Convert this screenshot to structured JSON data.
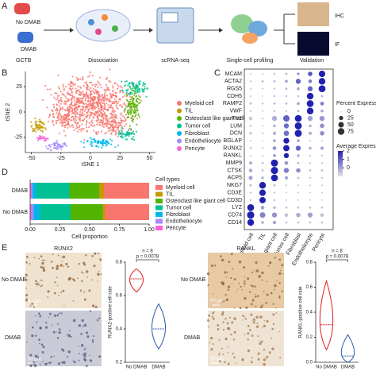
{
  "panel_labels": [
    "A",
    "B",
    "C",
    "D",
    "E"
  ],
  "workflow": {
    "groups": [
      "No DMAB",
      "DMAB"
    ],
    "sample": "GCTB",
    "steps": [
      "Dissociation",
      "scRNA-seq",
      "Single-cell profiling",
      "Validation"
    ],
    "validation_methods": [
      "IHC",
      "IF"
    ]
  },
  "ihc": {
    "rows": [
      "No DMAB",
      "DMAB"
    ],
    "scale_bar": "50 μm"
  },
  "chart_data": [
    {
      "type": "scatter",
      "xlabel": "tSNE 1",
      "ylabel": "tSNE 2",
      "xlim": [
        -55,
        55
      ],
      "xticks": [
        -50,
        -25,
        0,
        25,
        50
      ],
      "ylim": [
        -40,
        40
      ],
      "yticks": [
        -25,
        0,
        25
      ],
      "clusters": [
        {
          "name": "Myeloid cell",
          "color": "#F8766D"
        },
        {
          "name": "TIL",
          "color": "#C49A00"
        },
        {
          "name": "Osteoclast like giant cell",
          "color": "#53B400"
        },
        {
          "name": "Tumor cell",
          "color": "#00C094"
        },
        {
          "name": "Fibroblast",
          "color": "#00B6EB"
        },
        {
          "name": "Endotheliocyte",
          "color": "#A58AFF"
        },
        {
          "name": "Pericyte",
          "color": "#FB61D7"
        }
      ]
    },
    {
      "type": "dot",
      "genes": [
        "MCAM",
        "ACTA2",
        "RGS5",
        "CDH5",
        "RAMP2",
        "VWF",
        "FN1",
        "LUM",
        "DCN",
        "BGLAP",
        "RUNX2",
        "RANKL",
        "MMP9",
        "CTSK",
        "ACP5",
        "NKG7",
        "CD3E",
        "CD3D",
        "LYZ",
        "CD74",
        "CD14"
      ],
      "categories": [
        "Myeloid cell",
        "TIL",
        "Osteoclast like giant cell",
        "Tumor cell",
        "Fibroblast",
        "Endotheliocyte",
        "Pericyte"
      ],
      "percent": [
        [
          2,
          2,
          3,
          5,
          8,
          30,
          70
        ],
        [
          3,
          5,
          5,
          10,
          40,
          20,
          75
        ],
        [
          2,
          2,
          3,
          5,
          10,
          40,
          80
        ],
        [
          2,
          1,
          3,
          3,
          3,
          75,
          5
        ],
        [
          5,
          3,
          5,
          5,
          10,
          80,
          20
        ],
        [
          3,
          2,
          3,
          3,
          5,
          75,
          10
        ],
        [
          20,
          5,
          40,
          70,
          80,
          40,
          40
        ],
        [
          5,
          2,
          10,
          40,
          85,
          10,
          30
        ],
        [
          8,
          3,
          15,
          45,
          85,
          15,
          30
        ],
        [
          2,
          1,
          10,
          55,
          10,
          2,
          2
        ],
        [
          5,
          3,
          20,
          65,
          40,
          10,
          15
        ],
        [
          2,
          2,
          10,
          40,
          8,
          2,
          3
        ],
        [
          15,
          5,
          85,
          20,
          5,
          2,
          2
        ],
        [
          20,
          5,
          90,
          40,
          30,
          5,
          5
        ],
        [
          25,
          10,
          80,
          15,
          5,
          3,
          3
        ],
        [
          5,
          75,
          5,
          2,
          2,
          2,
          2
        ],
        [
          3,
          70,
          3,
          1,
          1,
          1,
          1
        ],
        [
          3,
          65,
          3,
          1,
          1,
          1,
          1
        ],
        [
          80,
          20,
          10,
          5,
          5,
          5,
          5
        ],
        [
          90,
          50,
          40,
          20,
          30,
          40,
          20
        ],
        [
          75,
          10,
          15,
          5,
          5,
          5,
          5
        ]
      ],
      "expression": [
        [
          -0.5,
          -0.5,
          -0.4,
          -0.3,
          0.2,
          1.2,
          2
        ],
        [
          -0.5,
          -0.4,
          -0.3,
          0,
          1,
          0.5,
          2
        ],
        [
          -0.5,
          -0.5,
          -0.4,
          -0.3,
          0,
          1,
          2
        ],
        [
          -0.4,
          -0.5,
          -0.3,
          -0.3,
          -0.3,
          2,
          -0.2
        ],
        [
          -0.3,
          -0.4,
          -0.3,
          -0.3,
          0,
          2,
          0.5
        ],
        [
          -0.4,
          -0.5,
          -0.3,
          -0.4,
          -0.3,
          2,
          0
        ],
        [
          -0.6,
          -0.8,
          -0.2,
          1,
          2,
          0,
          0.2
        ],
        [
          -0.5,
          -0.5,
          -0.3,
          0.8,
          2,
          -0.3,
          0.3
        ],
        [
          -0.5,
          -0.5,
          -0.2,
          0.8,
          2,
          -0.2,
          0.3
        ],
        [
          -0.5,
          -0.5,
          0,
          2,
          0,
          -0.5,
          -0.5
        ],
        [
          -0.5,
          -0.5,
          0.2,
          2,
          1,
          -0.2,
          0
        ],
        [
          -0.4,
          -0.4,
          0.2,
          2,
          0,
          -0.4,
          -0.4
        ],
        [
          -0.2,
          -0.4,
          2,
          0.2,
          -0.3,
          -0.4,
          -0.4
        ],
        [
          -0.2,
          -0.4,
          2,
          0.6,
          0.3,
          -0.4,
          -0.4
        ],
        [
          0,
          -0.3,
          2,
          0,
          -0.4,
          -0.4,
          -0.4
        ],
        [
          -0.3,
          2,
          -0.3,
          -0.4,
          -0.4,
          -0.4,
          -0.4
        ],
        [
          -0.4,
          2,
          -0.4,
          -0.4,
          -0.4,
          -0.4,
          -0.4
        ],
        [
          -0.4,
          2,
          -0.4,
          -0.4,
          -0.4,
          -0.4,
          -0.4
        ],
        [
          2,
          0,
          -0.3,
          -0.5,
          -0.5,
          -0.5,
          -0.5
        ],
        [
          2,
          0.5,
          0.2,
          -0.5,
          -0.2,
          0,
          -0.5
        ],
        [
          2,
          -0.2,
          0,
          -0.5,
          -0.5,
          -0.5,
          -0.5
        ]
      ],
      "size_title": "Percent Expressed",
      "size_ticks": [
        0,
        25,
        50,
        75
      ],
      "color_title": "Average Expression",
      "clim": [
        -1,
        2
      ],
      "cticks": [
        2,
        1,
        0
      ],
      "color_low": "#e3e3e3",
      "color_high": "#2121b0"
    },
    {
      "type": "stacked_bar_h",
      "categories": [
        "DMAB",
        "No DMAB"
      ],
      "xlabel": "Cell proportion",
      "legend_title": "Cell types",
      "xlim": [
        0,
        1
      ],
      "xticks": [
        {
          "value": 0,
          "label": "0.00"
        },
        {
          "value": 0.25,
          "label": "0.25"
        },
        {
          "value": 0.5,
          "label": "0.50"
        },
        {
          "value": 0.75,
          "label": "0.75"
        },
        {
          "value": 1,
          "label": "1.00"
        }
      ],
      "series": [
        {
          "name": "Myeloid cell",
          "color": "#F8766D",
          "values": [
            0.38,
            0.37
          ]
        },
        {
          "name": "TIL",
          "color": "#C49A00",
          "values": [
            0.04,
            0.02
          ]
        },
        {
          "name": "Osteoclast like giant cell",
          "color": "#53B400",
          "values": [
            0.25,
            0.27
          ]
        },
        {
          "name": "Tumor cell",
          "color": "#00C094",
          "values": [
            0.28,
            0.26
          ]
        },
        {
          "name": "Fibroblast",
          "color": "#00B6EB",
          "values": [
            0.03,
            0.05
          ]
        },
        {
          "name": "Endotheliocyte",
          "color": "#A58AFF",
          "values": [
            0.01,
            0.02
          ]
        },
        {
          "name": "Pericyte",
          "color": "#FB61D7",
          "values": [
            0.01,
            0.01
          ]
        }
      ]
    },
    {
      "type": "violin",
      "title": "RUNX2",
      "ylabel": "RUNX2-positive cell rate",
      "categories": [
        "No DMAB",
        "DMAB"
      ],
      "colors": [
        "#e41a1c",
        "#2a5caa"
      ],
      "values": [
        0.7,
        0.4
      ],
      "min": [
        0.62,
        0.28
      ],
      "max": [
        0.76,
        0.55
      ],
      "ylim": [
        0.2,
        0.8
      ],
      "yticks": [
        0.2,
        0.4,
        0.6,
        0.8
      ],
      "n_label": "n = 8",
      "p_label": "p = 0.0078"
    },
    {
      "type": "violin",
      "title": "RANKL",
      "ylabel": "RANKL-positive cell rate",
      "categories": [
        "No DMAB",
        "DMAB"
      ],
      "colors": [
        "#e41a1c",
        "#2a5caa"
      ],
      "values": [
        0.3,
        0.05
      ],
      "min": [
        0.1,
        0
      ],
      "max": [
        0.65,
        0.22
      ],
      "ylim": [
        0,
        0.8
      ],
      "yticks": [
        {
          "value": 0,
          "label": "0.0"
        },
        0.2,
        0.4,
        0.6,
        0.8
      ],
      "n_label": "n = 8",
      "p_label": "p = 0.0078"
    }
  ]
}
